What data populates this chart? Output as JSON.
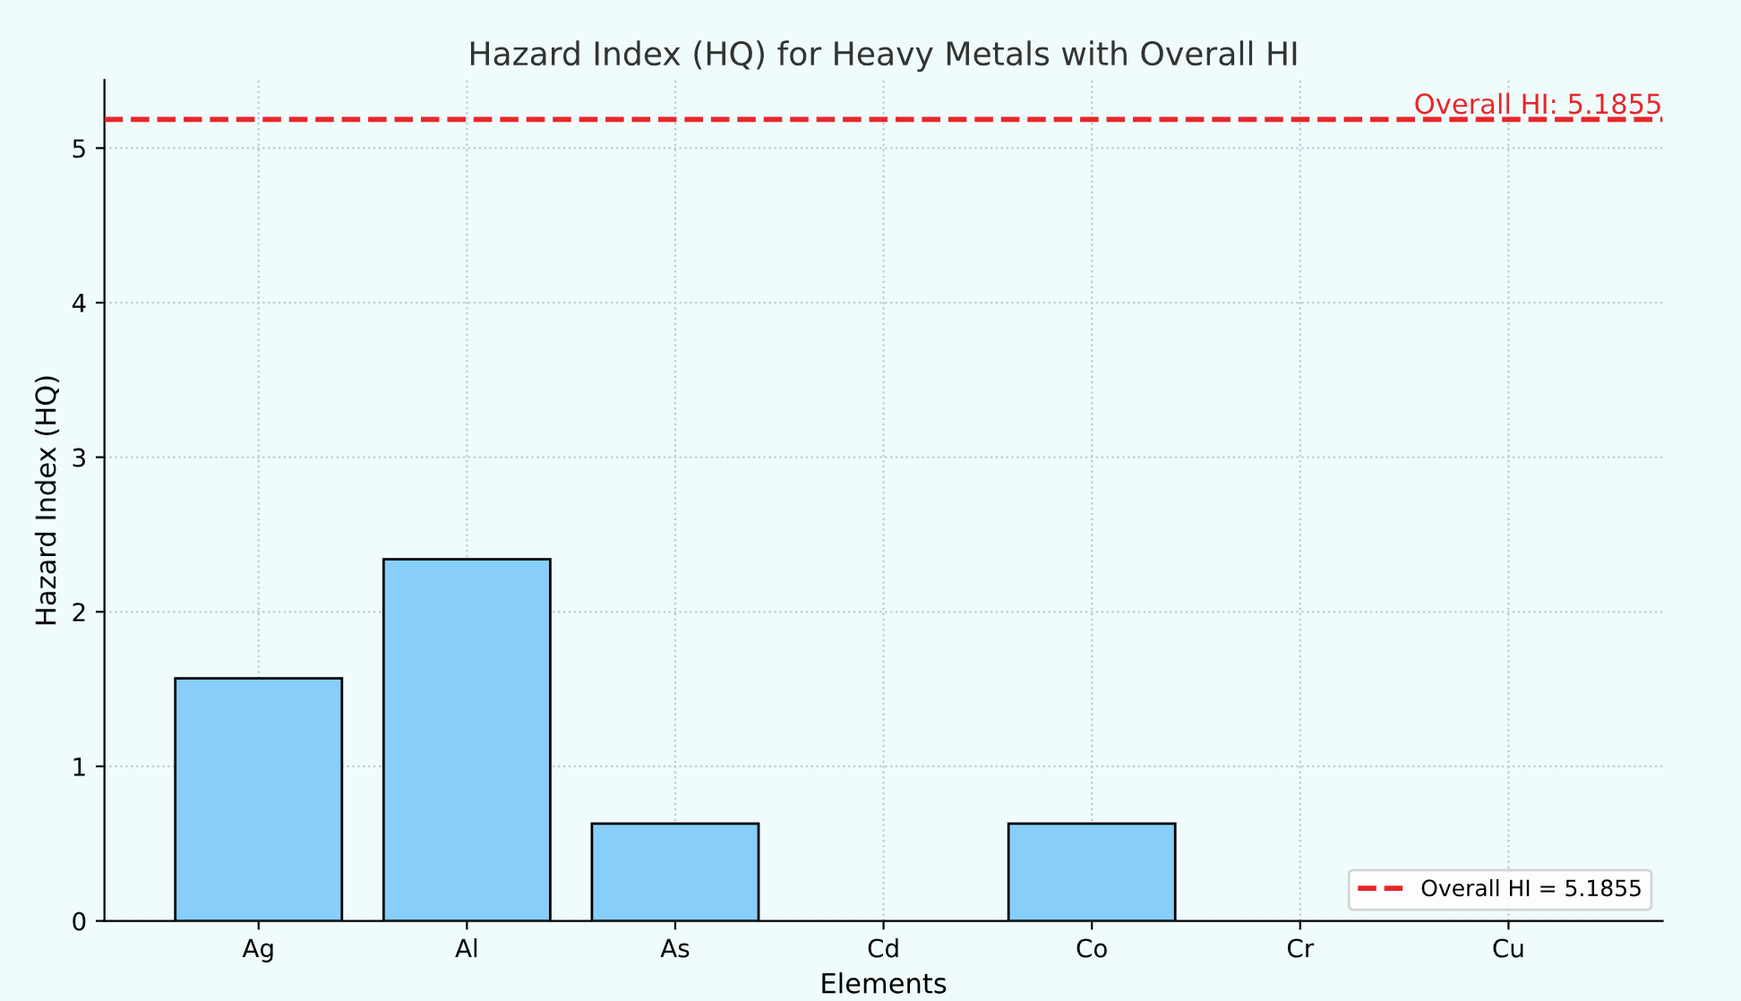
{
  "chart_data": {
    "type": "bar",
    "title": "Hazard Index (HQ) for Heavy Metals with Overall HI",
    "xlabel": "Elements",
    "ylabel": "Hazard Index (HQ)",
    "categories": [
      "Ag",
      "Al",
      "As",
      "Cd",
      "Co",
      "Cr",
      "Cu"
    ],
    "values": [
      1.57,
      2.34,
      0.63,
      0,
      0.63,
      0,
      0
    ],
    "color": "#87cefa",
    "ylim": [
      0,
      5.44
    ],
    "yticks": [
      0,
      1,
      2,
      3,
      4,
      5
    ],
    "grid": true,
    "legend": "lower right",
    "ref_lines": [
      {
        "axis": "y",
        "value": 5.1855,
        "label": "Overall HI = 5.1855",
        "color": "#e8262a",
        "line_style": "dashed"
      }
    ],
    "annotations": [
      "Overall HI: 5.1855"
    ]
  }
}
